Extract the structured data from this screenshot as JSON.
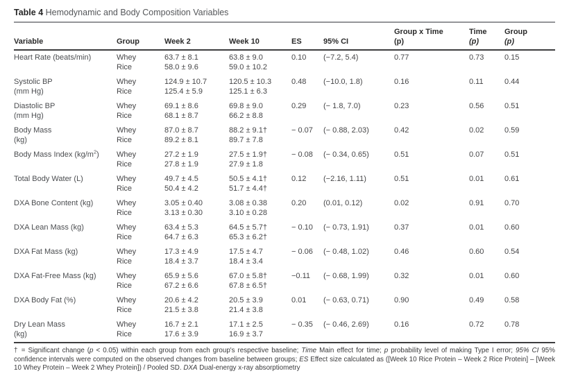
{
  "title": {
    "label": "Table 4",
    "text": " Hemodynamic and Body Composition Variables"
  },
  "table": {
    "headers": {
      "variable": "Variable",
      "group": "Group",
      "week2": "Week 2",
      "week10": "Week 10",
      "es": "ES",
      "ci": "95% CI",
      "group_x_time_line1": "Group x Time",
      "group_x_time_line2": "(p)",
      "time_line1": "Time",
      "time_line2": "(p)",
      "group_p_line1": "Group",
      "group_p_line2": "(p)"
    },
    "rows": [
      {
        "variable": [
          "Heart Rate (beats/min)",
          ""
        ],
        "groups": [
          "Whey",
          "Rice"
        ],
        "week2": [
          "63.7 ± 8.1",
          "58.0 ± 9.6"
        ],
        "week10": [
          "63.8 ± 9.0",
          "59.0 ± 10.2"
        ],
        "es": "0.10",
        "ci": "(−7.2, 5.4)",
        "group_x_time_p": "0.77",
        "time_p": "0.73",
        "group_p": "0.15"
      },
      {
        "variable": [
          "Systolic BP",
          "(mm Hg)"
        ],
        "groups": [
          "Whey",
          "Rice"
        ],
        "week2": [
          "124.9 ± 10.7",
          "125.4 ± 5.9"
        ],
        "week10": [
          "120.5 ± 10.3",
          "125.1 ± 6.3"
        ],
        "es": "0.48",
        "ci": "(−10.0, 1.8)",
        "group_x_time_p": "0.16",
        "time_p": "0.11",
        "group_p": "0.44"
      },
      {
        "variable": [
          "Diastolic BP",
          "(mm Hg)"
        ],
        "groups": [
          "Whey",
          "Rice"
        ],
        "week2": [
          "69.1 ± 8.6",
          "68.1 ± 8.7"
        ],
        "week10": [
          "69.8 ± 9.0",
          "66.2 ± 8.8"
        ],
        "es": "0.29",
        "ci": "(− 1.8, 7.0)",
        "group_x_time_p": "0.23",
        "time_p": "0.56",
        "group_p": "0.51"
      },
      {
        "variable": [
          "Body Mass",
          "(kg)"
        ],
        "groups": [
          "Whey",
          "Rice"
        ],
        "week2": [
          "87.0 ± 8.7",
          "89.2 ± 8.1"
        ],
        "week10": [
          "88.2 ± 9.1†",
          "89.7 ± 7.8"
        ],
        "es": "− 0.07",
        "ci": "(− 0.88, 2.03)",
        "group_x_time_p": "0.42",
        "time_p": "0.02",
        "group_p": "0.59"
      },
      {
        "variable": [
          "Body Mass Index (kg/m²)",
          ""
        ],
        "groups": [
          "Whey",
          "Rice"
        ],
        "week2": [
          "27.2 ± 1.9",
          "27.8 ± 1.9"
        ],
        "week10": [
          "27.5 ± 1.9†",
          "27.9 ± 1.8"
        ],
        "es": "− 0.08",
        "ci": "(− 0.34, 0.65)",
        "group_x_time_p": "0.51",
        "time_p": "0.07",
        "group_p": "0.51"
      },
      {
        "variable": [
          "Total Body Water (L)",
          ""
        ],
        "groups": [
          "Whey",
          "Rice"
        ],
        "week2": [
          "49.7 ± 4.5",
          "50.4 ± 4.2"
        ],
        "week10": [
          "50.5 ± 4.1†",
          "51.7 ± 4.4†"
        ],
        "es": "0.12",
        "ci": "(−2.16, 1.11)",
        "group_x_time_p": "0.51",
        "time_p": "0.01",
        "group_p": "0.61"
      },
      {
        "variable": [
          "DXA Bone Content (kg)",
          ""
        ],
        "groups": [
          "Whey",
          "Rice"
        ],
        "week2": [
          "3.05 ± 0.40",
          "3.13 ± 0.30"
        ],
        "week10": [
          "3.08 ± 0.38",
          "3.10 ± 0.28"
        ],
        "es": "0.20",
        "ci": "(0.01, 0.12)",
        "group_x_time_p": "0.02",
        "time_p": "0.91",
        "group_p": "0.70"
      },
      {
        "variable": [
          "DXA Lean Mass (kg)",
          ""
        ],
        "groups": [
          "Whey",
          "Rice"
        ],
        "week2": [
          "63.4 ± 5.3",
          "64.7 ± 6.3"
        ],
        "week10": [
          "64.5 ± 5.7†",
          "65.3 ± 6.2†"
        ],
        "es": "− 0.10",
        "ci": "(− 0.73, 1.91)",
        "group_x_time_p": "0.37",
        "time_p": "0.01",
        "group_p": "0.60"
      },
      {
        "variable": [
          "DXA Fat Mass (kg)",
          ""
        ],
        "groups": [
          "Whey",
          "Rice"
        ],
        "week2": [
          "17.3 ± 4.9",
          "18.4 ± 3.7"
        ],
        "week10": [
          "17.5 ± 4.7",
          "18.4 ± 3.4"
        ],
        "es": "− 0.06",
        "ci": "(− 0.48, 1.02)",
        "group_x_time_p": "0.46",
        "time_p": "0.60",
        "group_p": "0.54"
      },
      {
        "variable": [
          "DXA Fat-Free Mass (kg)",
          ""
        ],
        "groups": [
          "Whey",
          "Rice"
        ],
        "week2": [
          "65.9 ± 5.6",
          "67.2 ± 6.6"
        ],
        "week10": [
          "67.0 ± 5.8†",
          "67.8 ± 6.5†"
        ],
        "es": "−0.11",
        "ci": "(− 0.68, 1.99)",
        "group_x_time_p": "0.32",
        "time_p": "0.01",
        "group_p": "0.60"
      },
      {
        "variable": [
          "DXA Body Fat (%)",
          ""
        ],
        "groups": [
          "Whey",
          "Rice"
        ],
        "week2": [
          "20.6 ± 4.2",
          "21.5 ± 3.8"
        ],
        "week10": [
          "20.5 ± 3.9",
          "21.4 ± 3.8"
        ],
        "es": "0.01",
        "ci": "(− 0.63, 0.71)",
        "group_x_time_p": "0.90",
        "time_p": "0.49",
        "group_p": "0.58"
      },
      {
        "variable": [
          "Dry Lean Mass",
          "(kg)"
        ],
        "groups": [
          "Whey",
          "Rice"
        ],
        "week2": [
          "16.7 ± 2.1",
          "17.6 ± 3.9"
        ],
        "week10": [
          "17.1 ± 2.5",
          "16.9 ± 3.7"
        ],
        "es": "− 0.35",
        "ci": "(− 0.46, 2.69)",
        "group_x_time_p": "0.16",
        "time_p": "0.72",
        "group_p": "0.78"
      }
    ]
  },
  "footnote": {
    "segments": [
      {
        "t": "† = Significant change (",
        "i": false
      },
      {
        "t": "p",
        "i": true
      },
      {
        "t": " < 0.05) within each group from each group's respective baseline; ",
        "i": false
      },
      {
        "t": "Time",
        "i": true
      },
      {
        "t": " Main effect for time; ",
        "i": false
      },
      {
        "t": "p",
        "i": true
      },
      {
        "t": " probability level of making Type I error; ",
        "i": false
      },
      {
        "t": "95% CI",
        "i": true
      },
      {
        "t": " 95% confidence intervals were computed on the observed changes from baseline between groups; ",
        "i": false
      },
      {
        "t": "ES",
        "i": true
      },
      {
        "t": " Effect size calculated as ([Week 10 Rice Protein – Week 2 Rice Protein] – [Week 10 Whey Protein – Week 2 Whey Protein]) / Pooled SD. ",
        "i": false
      },
      {
        "t": "DXA",
        "i": true
      },
      {
        "t": " Dual-energy x-ray absorptiometry",
        "i": false
      }
    ]
  }
}
